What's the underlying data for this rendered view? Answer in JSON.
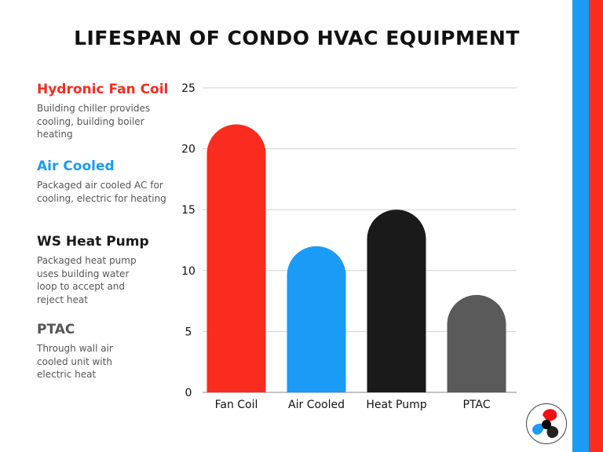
{
  "title": "LIFESPAN OF CONDO HVAC EQUIPMENT",
  "legend": [
    {
      "heading": "Hydronic Fan Coil",
      "description": "Building chiller provides cooling, building boiler heating",
      "color": "#fa2b1f"
    },
    {
      "heading": "Air Cooled",
      "description": "Packaged air cooled AC for cooling, electric for heating",
      "color": "#1a9bf5"
    },
    {
      "heading": "WS Heat Pump",
      "description": "Packaged heat pump uses building water loop to accept and reject heat",
      "color": "#1a1a1a"
    },
    {
      "heading": "PTAC",
      "description": "Through wall air cooled unit with electric heat",
      "color": "#555555"
    }
  ],
  "chart_data": {
    "type": "bar",
    "title": "LIFESPAN OF CONDO HVAC EQUIPMENT",
    "categories": [
      "Fan Coil",
      "Air Cooled",
      "Heat Pump",
      "PTAC"
    ],
    "values": [
      22,
      12,
      15,
      8
    ],
    "colors": [
      "#fa2b1f",
      "#1a9bf5",
      "#1a1a1a",
      "#5a5a5a"
    ],
    "ylim": [
      0,
      25
    ],
    "yticks": [
      "0",
      "5",
      "10",
      "15",
      "20",
      "25"
    ],
    "grid": true,
    "xlabel": "",
    "ylabel": ""
  },
  "decor": {
    "stripe_colors": [
      "#1a9bf5",
      "#fa2b1f"
    ],
    "logo_icon": "fan-logo-icon"
  }
}
